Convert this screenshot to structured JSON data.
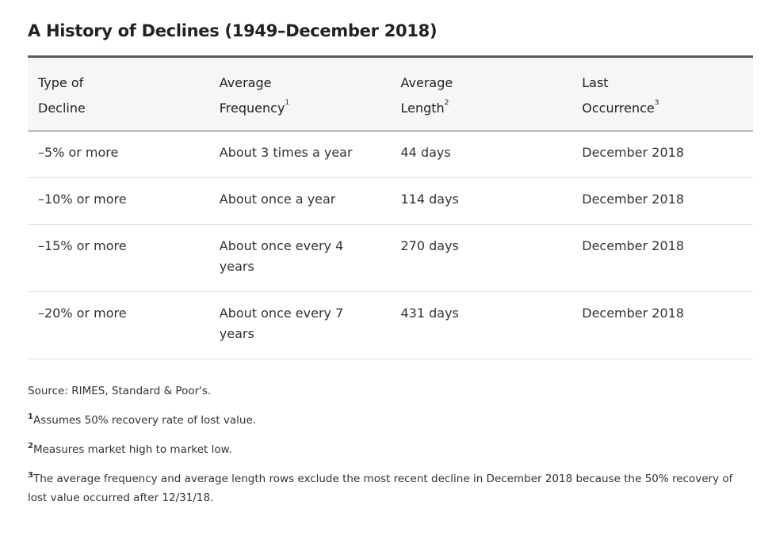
{
  "title": "A History of Declines (1949–December 2018)",
  "table": {
    "columns": [
      {
        "label": "Type of Decline"
      },
      {
        "label": "Average Frequency",
        "note": "1"
      },
      {
        "label": "Average Length",
        "note": "2"
      },
      {
        "label": "Last Occurrence",
        "note": "3"
      }
    ],
    "rows": [
      [
        "–5% or more",
        "About 3 times a year",
        "44 days",
        "December 2018"
      ],
      [
        "–10% or more",
        "About once a year",
        "114 days",
        "December 2018"
      ],
      [
        "–15% or more",
        "About once every 4 years",
        "270 days",
        "December 2018"
      ],
      [
        "–20% or more",
        "About once every 7 years",
        "431 days",
        "December 2018"
      ]
    ]
  },
  "source": "Source: RIMES, Standard & Poor's.",
  "footnotes": [
    {
      "marker": "1",
      "text": "Assumes 50% recovery rate of lost value."
    },
    {
      "marker": "2",
      "text": "Measures market high to market low."
    },
    {
      "marker": "3",
      "text": "The average frequency and average length rows exclude the most recent decline in December 2018 because the 50% recovery of lost value occurred after 12/31/18."
    }
  ]
}
